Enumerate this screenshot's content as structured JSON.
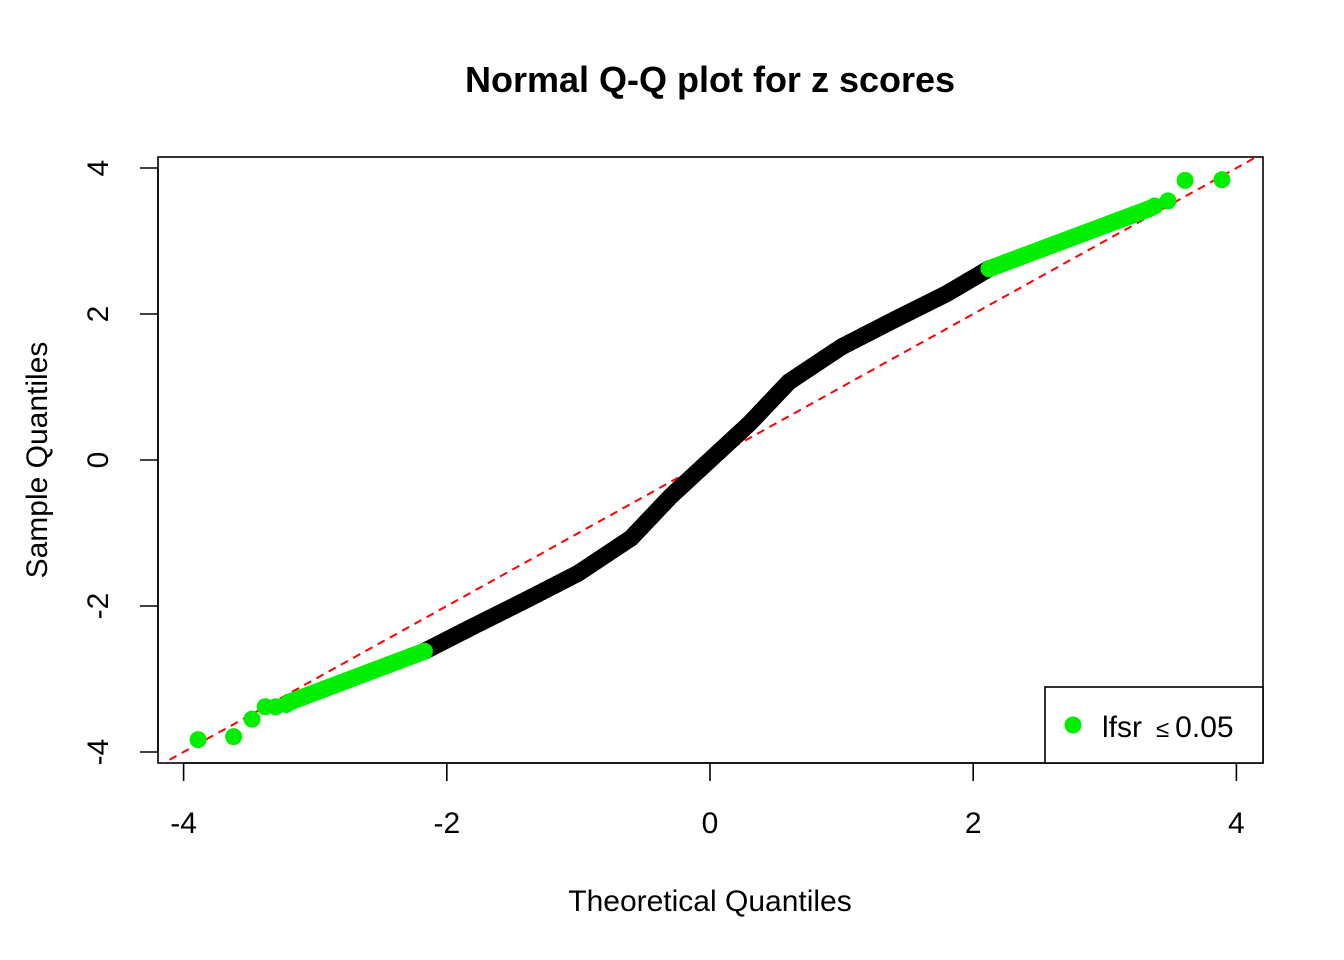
{
  "chart_data": {
    "type": "scatter",
    "title": "Normal Q-Q plot for z scores",
    "xlabel": "Theoretical Quantiles",
    "ylabel": "Sample Quantiles",
    "xlim": [
      -4.1,
      4.2
    ],
    "ylim": [
      -4.15,
      4.15
    ],
    "x_ticks": [
      -4,
      -2,
      0,
      2,
      4
    ],
    "y_ticks": [
      -4,
      -2,
      0,
      2,
      4
    ],
    "x_tick_labels": [
      "-4",
      "-2",
      "0",
      "2",
      "4"
    ],
    "y_tick_labels": [
      "-4",
      "-2",
      "0",
      "2",
      "4"
    ],
    "grid": false,
    "legend": {
      "position": "bottom-right",
      "entries": [
        {
          "marker": "filled-circle",
          "color": "#00ee00",
          "label": "lfsr",
          "relation": "≤",
          "value": "0.05"
        }
      ]
    },
    "reference_line": {
      "type": "dashed",
      "color": "#ff0000",
      "intercept": 0,
      "slope": 1
    },
    "series": [
      {
        "name": "lfsr ≤ 0.05",
        "color": "#00ee00",
        "segments": [
          {
            "x": [
              -3.89,
              -3.62,
              -3.48,
              -3.38,
              -3.3,
              -3.22
            ],
            "y": [
              -3.83,
              -3.79,
              -3.55,
              -3.38,
              -3.38,
              -3.35
            ]
          },
          {
            "x_range": [
              -3.2,
              -2.17
            ],
            "y_range": [
              -3.32,
              -2.62
            ]
          },
          {
            "x_range": [
              2.12,
              3.35
            ],
            "y_range": [
              2.62,
              3.45
            ]
          },
          {
            "x": [
              3.38,
              3.48,
              3.61,
              3.89
            ],
            "y": [
              3.48,
              3.55,
              3.83,
              3.84
            ]
          }
        ]
      },
      {
        "name": "",
        "color": "#000000",
        "curve": [
          [
            -2.17,
            -2.62
          ],
          [
            -1.8,
            -2.28
          ],
          [
            -1.4,
            -1.92
          ],
          [
            -1.0,
            -1.55
          ],
          [
            -0.6,
            -1.07
          ],
          [
            -0.3,
            -0.5
          ],
          [
            0.0,
            0.0
          ],
          [
            0.3,
            0.5
          ],
          [
            0.6,
            1.07
          ],
          [
            1.0,
            1.55
          ],
          [
            1.4,
            1.92
          ],
          [
            1.8,
            2.28
          ],
          [
            2.12,
            2.62
          ]
        ]
      }
    ]
  }
}
